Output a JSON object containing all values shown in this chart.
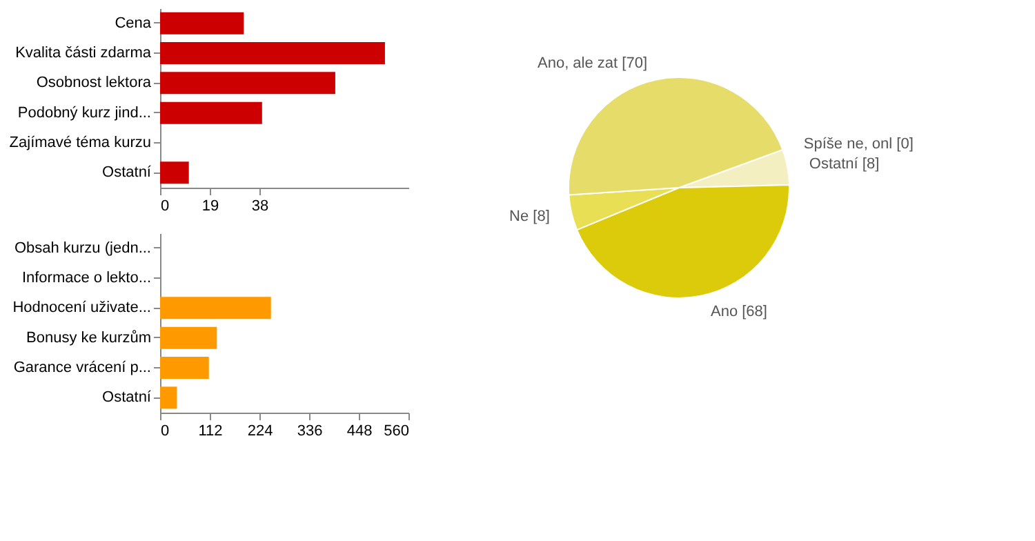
{
  "chart_data": [
    {
      "type": "bar",
      "orientation": "horizontal",
      "categories": [
        "Cena",
        "Kvalita části zdarma",
        "Osobnost lektora",
        "Podobný kurz jind...",
        "Zajímavé téma kurzu",
        "Ostatní"
      ],
      "values": [
        32,
        86,
        67,
        39,
        null,
        11
      ],
      "color": "#cc0000",
      "xlim": [
        0,
        95
      ],
      "xticks": [
        0,
        19,
        38
      ],
      "grid": false
    },
    {
      "type": "bar",
      "orientation": "horizontal",
      "categories": [
        "Obsah kurzu (jedn...",
        "Informace o lekto...",
        "Hodnocení uživate...",
        "Bonusy ke kurzům",
        "Garance vrácení p...",
        "Ostatní"
      ],
      "values": [
        null,
        null,
        250,
        128,
        110,
        38
      ],
      "color": "#ff9900",
      "xlim": [
        0,
        560
      ],
      "xticks": [
        0,
        112,
        224,
        336,
        448,
        560
      ],
      "grid": false
    },
    {
      "type": "pie",
      "categories": [
        "Spíše ne, onl [0]",
        "Ostatní [8]",
        "Ano [68]",
        "Ne [8]",
        "Ano, ale zat [70]"
      ],
      "values": [
        0,
        8,
        68,
        8,
        70
      ],
      "colors": [
        "#eee7a0",
        "#f3efc0",
        "#dccb0a",
        "#e9df55",
        "#e6dc6a"
      ],
      "legend": false
    }
  ]
}
